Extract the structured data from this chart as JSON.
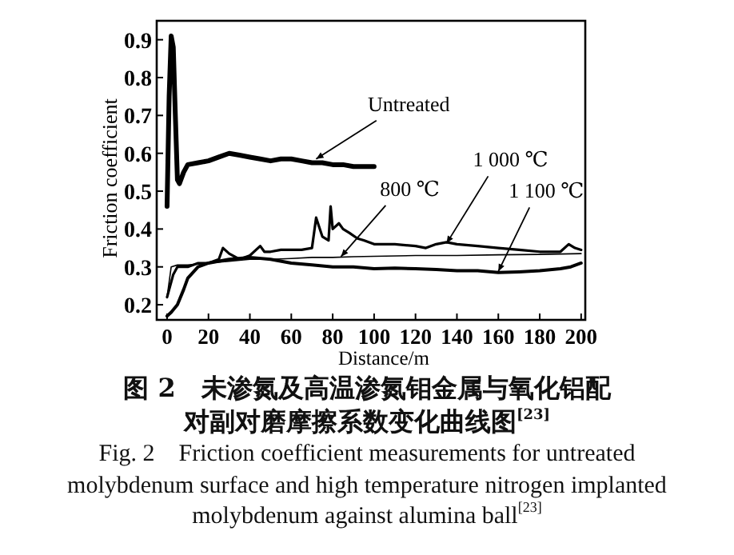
{
  "chart_data": {
    "type": "line",
    "xlabel": "Distance/m",
    "ylabel": "Friction coefficient",
    "xlim": [
      -5,
      202
    ],
    "ylim": [
      0.16,
      0.95
    ],
    "xticks": [
      0,
      20,
      40,
      60,
      80,
      100,
      120,
      140,
      160,
      180,
      200
    ],
    "yticks": [
      0.2,
      0.3,
      0.4,
      0.5,
      0.6,
      0.7,
      0.8,
      0.9
    ],
    "grid": false,
    "line_style": "solid",
    "marker": "none",
    "series": [
      {
        "color": "#000000",
        "x": [
          0,
          1,
          2,
          3,
          4,
          5,
          6,
          8,
          10,
          15,
          20,
          25,
          30,
          35,
          40,
          45,
          50,
          55,
          60,
          65,
          70,
          75,
          80,
          85,
          90,
          95,
          100
        ],
        "values": [
          0.46,
          0.75,
          0.91,
          0.88,
          0.7,
          0.53,
          0.52,
          0.55,
          0.57,
          0.575,
          0.58,
          0.59,
          0.6,
          0.595,
          0.59,
          0.585,
          0.58,
          0.585,
          0.585,
          0.58,
          0.575,
          0.575,
          0.57,
          0.57,
          0.565,
          0.565,
          0.565
        ]
      },
      {
        "color": "#000000",
        "x": [
          0,
          2,
          5,
          10,
          20,
          30,
          40,
          50,
          60,
          70,
          80,
          90,
          100,
          120,
          140,
          160,
          180,
          200
        ],
        "values": [
          0.22,
          0.3,
          0.305,
          0.305,
          0.31,
          0.315,
          0.32,
          0.32,
          0.322,
          0.325,
          0.325,
          0.327,
          0.328,
          0.33,
          0.33,
          0.332,
          0.333,
          0.335
        ]
      },
      {
        "color": "#000000",
        "x": [
          0,
          3,
          5,
          10,
          15,
          20,
          25,
          27,
          30,
          35,
          40,
          45,
          47,
          50,
          55,
          60,
          65,
          70,
          72,
          75,
          78,
          79,
          80,
          83,
          85,
          88,
          92,
          95,
          100,
          110,
          120,
          125,
          130,
          135,
          140,
          150,
          160,
          170,
          180,
          190,
          194,
          197,
          200
        ],
        "values": [
          0.22,
          0.28,
          0.3,
          0.3,
          0.31,
          0.31,
          0.32,
          0.35,
          0.335,
          0.32,
          0.33,
          0.355,
          0.34,
          0.34,
          0.345,
          0.345,
          0.345,
          0.35,
          0.43,
          0.38,
          0.37,
          0.46,
          0.4,
          0.415,
          0.4,
          0.39,
          0.375,
          0.37,
          0.36,
          0.36,
          0.355,
          0.35,
          0.36,
          0.365,
          0.36,
          0.355,
          0.35,
          0.345,
          0.34,
          0.34,
          0.36,
          0.35,
          0.345
        ]
      },
      {
        "color": "#000000",
        "x": [
          0,
          2,
          5,
          8,
          10,
          15,
          20,
          30,
          40,
          50,
          60,
          70,
          80,
          90,
          100,
          110,
          120,
          130,
          140,
          150,
          160,
          170,
          180,
          190,
          195,
          200
        ],
        "values": [
          0.17,
          0.18,
          0.2,
          0.24,
          0.27,
          0.3,
          0.31,
          0.32,
          0.325,
          0.32,
          0.31,
          0.305,
          0.3,
          0.3,
          0.295,
          0.297,
          0.295,
          0.293,
          0.29,
          0.29,
          0.285,
          0.287,
          0.29,
          0.295,
          0.3,
          0.31
        ]
      }
    ],
    "annotations": [
      {
        "text": "Untreated",
        "x": 72,
        "y": 0.585
      },
      {
        "text": "800 ℃",
        "x": 84,
        "y": 0.327
      },
      {
        "text": "1 000 ℃",
        "x": 135,
        "y": 0.362
      },
      {
        "text": "1 100 ℃",
        "x": 160,
        "y": 0.288
      },
      "图 2　未渗氮及高温渗氮钼金属与氧化铝配对副对磨摩擦系数变化曲线图$^{[23]}$",
      "Fig. 2　Friction coefficient measurements for untreated molybdenum surface and high temperature nitrogen implanted molybdenum against alumina ball$^{[23]}$"
    ]
  }
}
